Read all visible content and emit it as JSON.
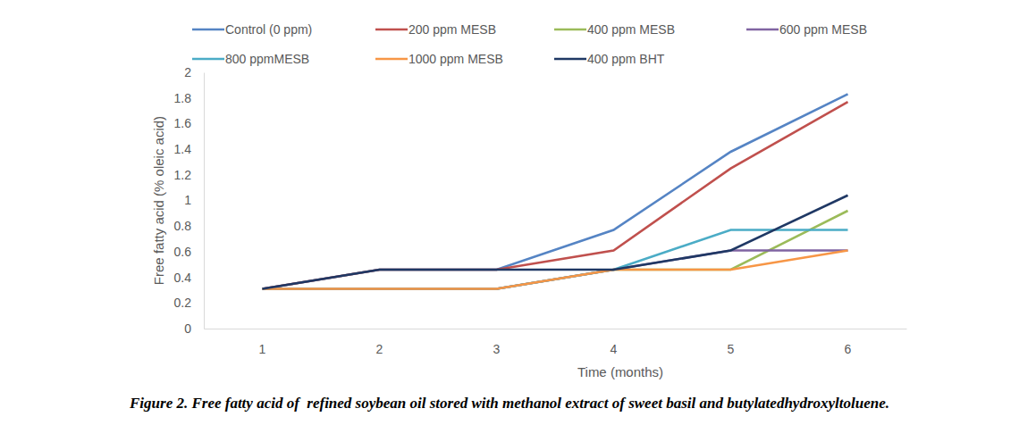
{
  "chart_data": {
    "type": "line",
    "title": "Figure 2. Free fatty acid of  refined soybean oil stored with methanol extract of sweet basil and butylatedhydroxyltoluene.",
    "x_label": "Time (months)",
    "y_label": "Free fatty acid (% oleic acid)",
    "categories": [
      "1",
      "2",
      "3",
      "4",
      "5",
      "6"
    ],
    "series": [
      {
        "name": "Control (0 ppm)",
        "color": "#5584c4",
        "values": [
          0.31,
          0.46,
          0.46,
          0.77,
          1.38,
          1.83
        ]
      },
      {
        "name": "200 ppm MESB",
        "color": "#c0504d",
        "values": [
          0.31,
          0.46,
          0.46,
          0.61,
          1.25,
          1.77
        ]
      },
      {
        "name": "400 ppm MESB",
        "color": "#9bbb59",
        "values": [
          0.31,
          0.31,
          0.31,
          0.46,
          0.46,
          0.92
        ]
      },
      {
        "name": "600 ppm MESB",
        "color": "#8064a2",
        "values": [
          0.31,
          0.31,
          0.31,
          0.46,
          0.61,
          0.61
        ]
      },
      {
        "name": "800 ppmMESB",
        "color": "#4bacc6",
        "values": [
          0.31,
          0.31,
          0.31,
          0.46,
          0.77,
          0.77
        ]
      },
      {
        "name": "1000 ppm MESB",
        "color": "#f79646",
        "values": [
          0.31,
          0.31,
          0.31,
          0.46,
          0.46,
          0.61
        ]
      },
      {
        "name": "400 ppm BHT",
        "color": "#1f3864",
        "values": [
          0.31,
          0.46,
          0.46,
          0.46,
          0.61,
          1.04
        ]
      }
    ],
    "ylim": [
      0,
      2
    ],
    "yticks": [
      0,
      0.2,
      0.4,
      0.6,
      0.8,
      1,
      1.2,
      1.4,
      1.6,
      1.8,
      2
    ],
    "grid": false,
    "legend": "top"
  }
}
